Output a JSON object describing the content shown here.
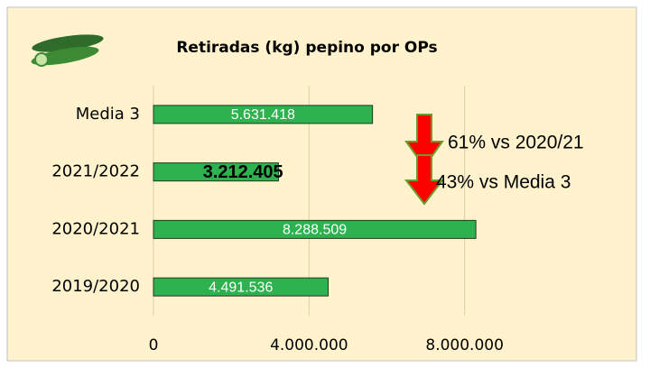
{
  "chart_data": {
    "type": "bar",
    "orientation": "horizontal",
    "title": "Retiradas (kg) pepino por OPs",
    "categories": [
      "Media 3",
      "2021/2022",
      "2020/2021",
      "2019/2020"
    ],
    "values": [
      5631418,
      3212405,
      8288509,
      4491536
    ],
    "value_labels": [
      "5.631.418",
      "3.212.405",
      "8.288.509",
      "4.491.536"
    ],
    "color": "#2eb14f",
    "xlim": [
      0,
      12000000
    ],
    "xticks": [
      0,
      {
        "value": 4000000,
        "label": "4.000.000"
      },
      {
        "value": 8000000,
        "label": "8.000.000"
      }
    ],
    "grid": true,
    "annotations": [
      "61% vs 2020/21",
      "43% vs Media 3"
    ]
  }
}
